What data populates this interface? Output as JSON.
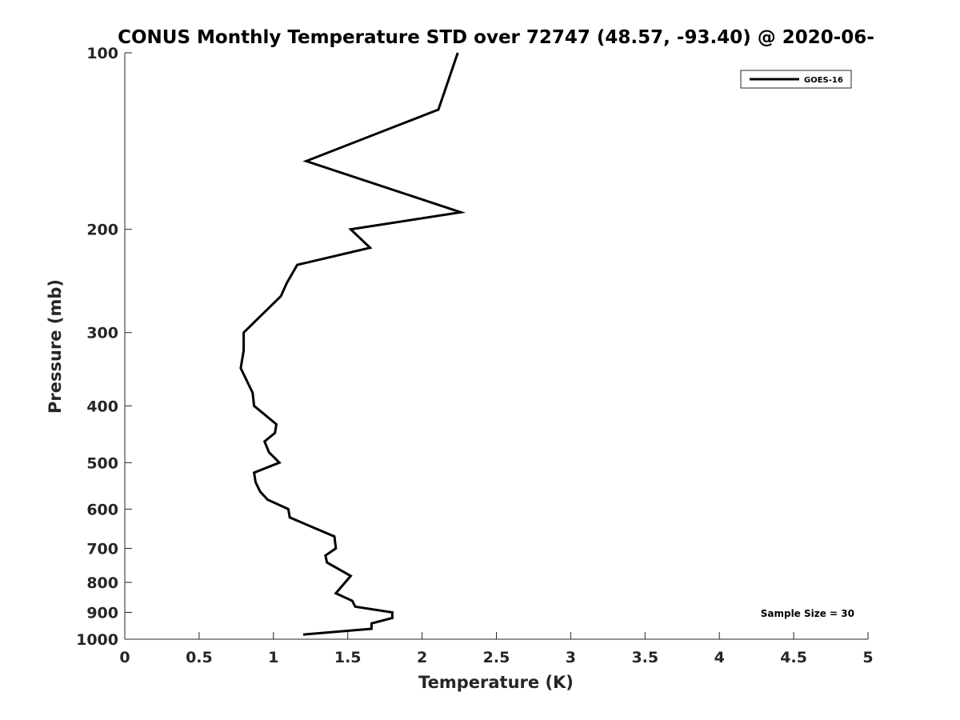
{
  "chart_data": {
    "type": "line",
    "title": "CONUS Monthly Temperature STD over 72747 (48.57, -93.40) @ 2020-06-",
    "xlabel": "Temperature (K)",
    "ylabel": "Pressure (mb)",
    "xlim": [
      0,
      5
    ],
    "ylim": [
      1000,
      100
    ],
    "yscale": "log",
    "y_reversed": true,
    "x_ticks": [
      "0",
      "0.5",
      "1",
      "1.5",
      "2",
      "2.5",
      "3",
      "3.5",
      "4",
      "4.5",
      "5"
    ],
    "y_ticks": [
      "100",
      "200",
      "300",
      "400",
      "500",
      "600",
      "700",
      "800",
      "900",
      "1000"
    ],
    "grid": false,
    "legend_position": "top-right",
    "legend": [
      "GOES-16"
    ],
    "annotation": "Sample Size = 30",
    "series": [
      {
        "name": "GOES-16",
        "color": "#000000",
        "points": [
          {
            "t": 2.24,
            "p": 100
          },
          {
            "t": 2.11,
            "p": 125
          },
          {
            "t": 1.22,
            "p": 153
          },
          {
            "t": 2.26,
            "p": 187
          },
          {
            "t": 1.52,
            "p": 200
          },
          {
            "t": 1.65,
            "p": 215
          },
          {
            "t": 1.16,
            "p": 230
          },
          {
            "t": 1.09,
            "p": 247
          },
          {
            "t": 1.05,
            "p": 260
          },
          {
            "t": 0.8,
            "p": 300
          },
          {
            "t": 0.8,
            "p": 322
          },
          {
            "t": 0.78,
            "p": 345
          },
          {
            "t": 0.86,
            "p": 380
          },
          {
            "t": 0.87,
            "p": 400
          },
          {
            "t": 1.02,
            "p": 430
          },
          {
            "t": 1.01,
            "p": 445
          },
          {
            "t": 0.94,
            "p": 460
          },
          {
            "t": 0.97,
            "p": 480
          },
          {
            "t": 1.04,
            "p": 500
          },
          {
            "t": 0.87,
            "p": 520
          },
          {
            "t": 0.88,
            "p": 540
          },
          {
            "t": 0.91,
            "p": 560
          },
          {
            "t": 0.96,
            "p": 578
          },
          {
            "t": 1.1,
            "p": 600
          },
          {
            "t": 1.11,
            "p": 620
          },
          {
            "t": 1.41,
            "p": 668
          },
          {
            "t": 1.42,
            "p": 700
          },
          {
            "t": 1.35,
            "p": 720
          },
          {
            "t": 1.36,
            "p": 740
          },
          {
            "t": 1.52,
            "p": 780
          },
          {
            "t": 1.42,
            "p": 835
          },
          {
            "t": 1.53,
            "p": 860
          },
          {
            "t": 1.55,
            "p": 880
          },
          {
            "t": 1.8,
            "p": 900
          },
          {
            "t": 1.8,
            "p": 920
          },
          {
            "t": 1.66,
            "p": 940
          },
          {
            "t": 1.66,
            "p": 960
          },
          {
            "t": 1.2,
            "p": 982
          }
        ]
      }
    ]
  }
}
